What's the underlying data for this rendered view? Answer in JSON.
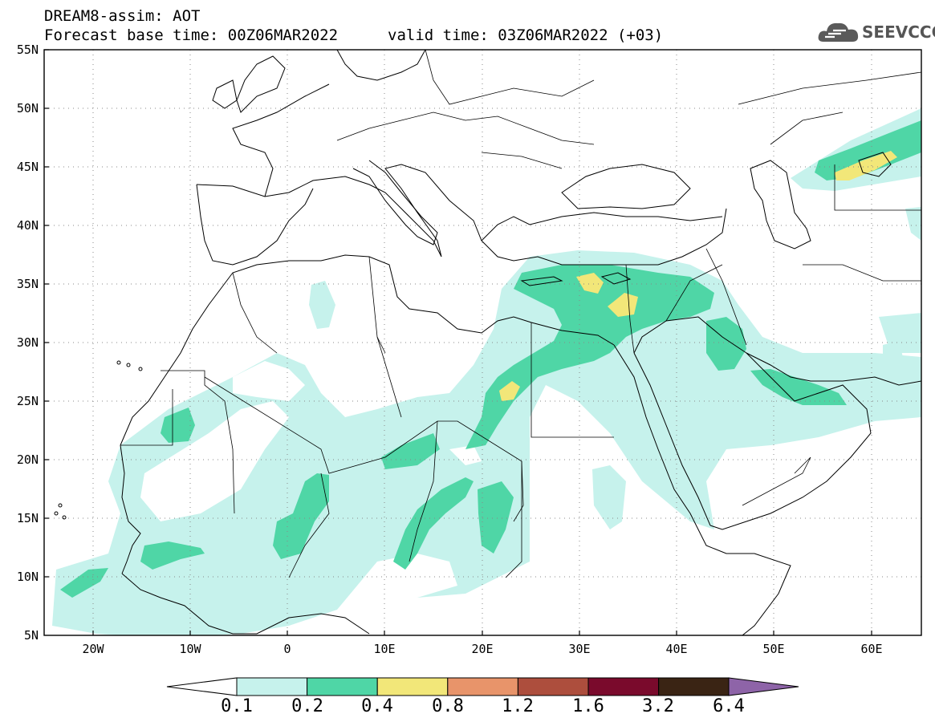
{
  "header": {
    "title": "DREAM8-assim: AOT",
    "base_time": "Forecast base time: 00Z06MAR2022",
    "valid_time": "valid time: 03Z06MAR2022 (+03)",
    "logo_text": "SEEVCCC"
  },
  "axes": {
    "lat_labels": [
      "55N",
      "50N",
      "45N",
      "40N",
      "35N",
      "30N",
      "25N",
      "20N",
      "15N",
      "10N",
      "5N"
    ],
    "lon_labels": [
      "20W",
      "10W",
      "0",
      "10E",
      "20E",
      "30E",
      "40E",
      "50E",
      "60E"
    ]
  },
  "colorbar": {
    "colors": [
      "#c6f2ec",
      "#4fd6a6",
      "#f2e779",
      "#e8946a",
      "#ad4e3d",
      "#7a0a2c",
      "#3a2414",
      "#8e64a8"
    ],
    "labels": [
      "0.1",
      "0.2",
      "0.4",
      "0.8",
      "1.2",
      "1.6",
      "3.2",
      "6.4"
    ]
  }
}
